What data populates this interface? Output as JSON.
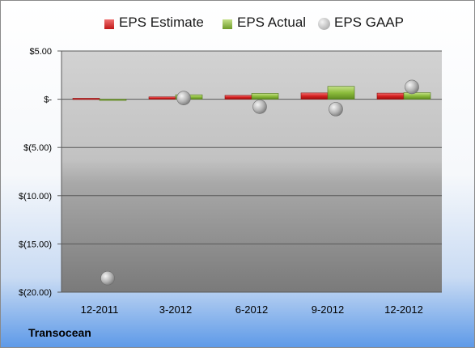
{
  "chart_data": {
    "type": "bar",
    "categories": [
      "12-2011",
      "3-2012",
      "6-2012",
      "9-2012",
      "12-2012"
    ],
    "series": [
      {
        "name": "EPS Estimate",
        "kind": "bar",
        "color": "#e03030",
        "values": [
          0.1,
          0.24,
          0.4,
          0.65,
          0.63
        ]
      },
      {
        "name": "EPS Actual",
        "kind": "bar",
        "color": "#90c040",
        "values": [
          -0.05,
          0.46,
          0.6,
          1.33,
          0.68
        ]
      },
      {
        "name": "EPS GAAP",
        "kind": "marker",
        "color": "#b8b8b8",
        "values": [
          -18.55,
          0.12,
          -0.78,
          -1.03,
          1.27
        ]
      }
    ],
    "y_ticks": [
      5,
      0,
      -5,
      -10,
      -15,
      -20
    ],
    "y_tick_labels": [
      "$5.00",
      "$-",
      "$(5.00)",
      "$(10.00)",
      "$(15.00)",
      "$(20.00)"
    ],
    "ylim": [
      -20,
      5
    ],
    "legend_position": "top",
    "grid": true,
    "title": "",
    "xlabel": "",
    "ylabel": ""
  },
  "legend": {
    "estimate_label": "EPS Estimate",
    "actual_label": "EPS Actual",
    "gaap_label": "EPS GAAP"
  },
  "company_name": "Transocean"
}
